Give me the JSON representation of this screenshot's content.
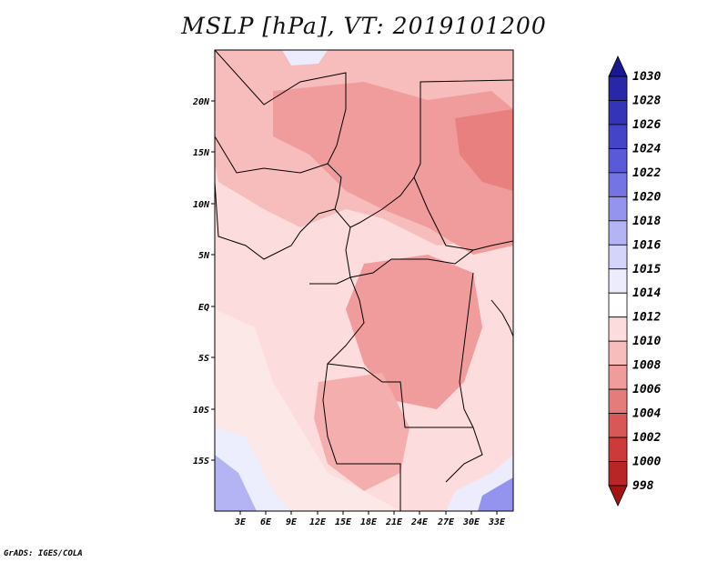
{
  "title": "MSLP [hPa], VT: 2019101200",
  "credit": "GrADS: IGES/COLA",
  "map": {
    "lat_labels": [
      "20N",
      "15N",
      "10N",
      "5N",
      "EQ",
      "5S",
      "10S",
      "15S"
    ],
    "lon_labels": [
      "3E",
      "6E",
      "9E",
      "12E",
      "15E",
      "18E",
      "21E",
      "24E",
      "27E",
      "30E",
      "33E"
    ]
  },
  "colorbar": {
    "labels": [
      "1030",
      "1028",
      "1026",
      "1024",
      "1022",
      "1020",
      "1018",
      "1016",
      "1015",
      "1014",
      "1012",
      "1010",
      "1008",
      "1006",
      "1004",
      "1002",
      "1000",
      "998"
    ],
    "colors": [
      "#1a1890",
      "#2727a8",
      "#3434b8",
      "#4444c8",
      "#5a5ad8",
      "#7474e4",
      "#9494ee",
      "#b4b4f4",
      "#d4d4fa",
      "#ececfd",
      "#ffffff",
      "#fcdcdc",
      "#f7bcbc",
      "#f19c9c",
      "#e57c7c",
      "#d85858",
      "#cc3a3a",
      "#b82626",
      "#a21414"
    ]
  }
}
